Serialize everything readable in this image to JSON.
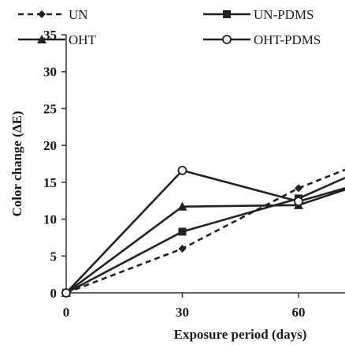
{
  "chart_data": {
    "type": "line",
    "xlabel": "Exposure period (days)",
    "ylabel": "Color change (ΔE)",
    "x_ticks": [
      0,
      30,
      60
    ],
    "y_ticks": [
      0,
      5,
      10,
      15,
      20,
      25,
      30,
      35
    ],
    "xlim": [
      0,
      72
    ],
    "ylim": [
      0,
      35
    ],
    "grid": false,
    "legend_position": "top",
    "series": [
      {
        "name": "UN",
        "x": [
          0,
          30,
          60,
          72
        ],
        "y": [
          0,
          6,
          14.2,
          16.7
        ],
        "marker": "diamond",
        "line": "dashed",
        "color": "#222222"
      },
      {
        "name": "UN-PDMS",
        "x": [
          0,
          30,
          60,
          72
        ],
        "y": [
          0,
          8.3,
          12.8,
          15.6
        ],
        "marker": "square",
        "line": "solid",
        "color": "#222222"
      },
      {
        "name": "OHT",
        "x": [
          0,
          30,
          60,
          72
        ],
        "y": [
          0,
          11.7,
          11.9,
          14
        ],
        "marker": "triangle",
        "line": "solid",
        "color": "#222222"
      },
      {
        "name": "OHT-PDMS",
        "x": [
          0,
          30,
          60,
          72
        ],
        "y": [
          0,
          16.6,
          12.4,
          14.2
        ],
        "marker": "circle-open",
        "line": "solid",
        "color": "#222222"
      }
    ]
  }
}
